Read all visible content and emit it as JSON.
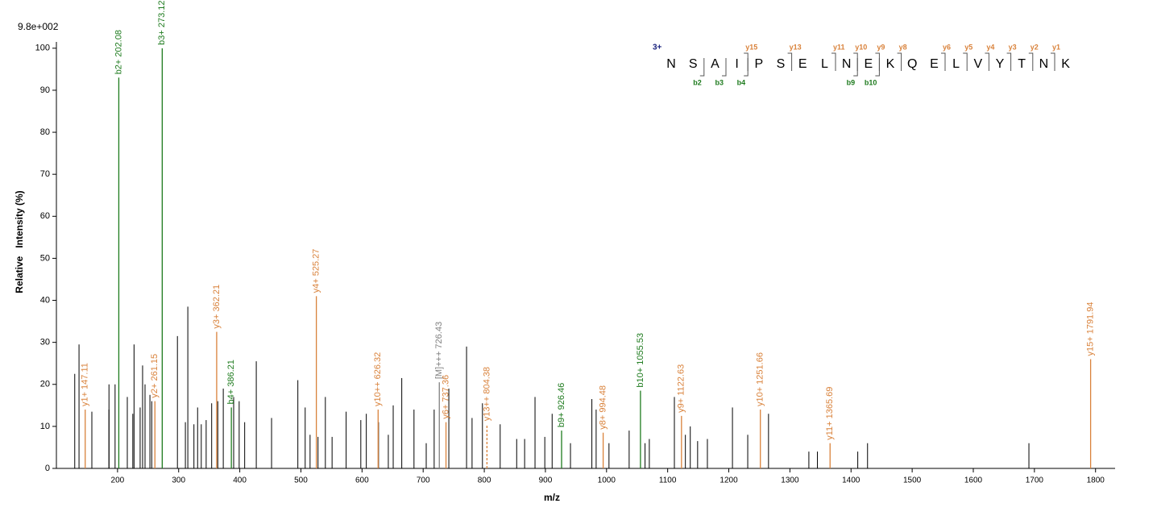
{
  "chart_data": {
    "type": "spectrum",
    "scale_label": "9.8e+002",
    "xlabel": "m/z",
    "ylabel": "Relative   Intensity (%)",
    "xlim": [
      100,
      1832
    ],
    "ylim": [
      0,
      101.5
    ],
    "xticks": [
      200,
      300,
      400,
      500,
      600,
      700,
      800,
      900,
      1000,
      1100,
      1200,
      1300,
      1400,
      1500,
      1600,
      1700,
      1800
    ],
    "yticks": [
      0,
      10,
      20,
      30,
      40,
      50,
      60,
      70,
      80,
      90,
      100
    ],
    "peaks": {
      "color": "#000000",
      "x": [
        130,
        137,
        158,
        186,
        186,
        196,
        216,
        225,
        227,
        237,
        241,
        245,
        253,
        256,
        298,
        311,
        315,
        325,
        331,
        337,
        345,
        354,
        364,
        373,
        390,
        399,
        408,
        427,
        452,
        495,
        507,
        515,
        528,
        540,
        551,
        574,
        598,
        607,
        627,
        643,
        651,
        665,
        685,
        705,
        718,
        742,
        771,
        780,
        797,
        826,
        853,
        866,
        883,
        899,
        911,
        941,
        976,
        983,
        1004,
        1037,
        1063,
        1070,
        1111,
        1129,
        1137,
        1149,
        1165,
        1206,
        1231,
        1265,
        1331,
        1345,
        1411,
        1427,
        1691
      ],
      "values": [
        22.5,
        29.5,
        13.5,
        20,
        14,
        20,
        17,
        13,
        29.5,
        14.5,
        24.5,
        20,
        17.5,
        16,
        31.5,
        11,
        38.5,
        10.5,
        14.5,
        10.5,
        11.5,
        15.5,
        16,
        19,
        17,
        16,
        11,
        25.5,
        12,
        21,
        14.5,
        8,
        7.5,
        17,
        7.5,
        13.5,
        11.5,
        13,
        11,
        8,
        15,
        21.5,
        14,
        6,
        14,
        19,
        29,
        12,
        15.5,
        10.5,
        7,
        7,
        17,
        7.5,
        13,
        6,
        16.5,
        14,
        6,
        9,
        6,
        7,
        17,
        8,
        10,
        6.5,
        7,
        14.5,
        8,
        13,
        4,
        4,
        4,
        6,
        6
      ]
    },
    "annotations": [
      {
        "x": 147.11,
        "value": 14,
        "label": "y1+ 147.11",
        "color": "#d9823b"
      },
      {
        "x": 202.08,
        "value": 93,
        "label": "b2+ 202.08",
        "color": "#1e7b1e"
      },
      {
        "x": 261.15,
        "value": 16,
        "label": "y2+ 261.15",
        "color": "#d9823b"
      },
      {
        "x": 273.12,
        "value": 100,
        "label": "b3+ 273.12",
        "color": "#1e7b1e"
      },
      {
        "x": 362.21,
        "value": 32.5,
        "label": "y3+ 362.21",
        "color": "#d9823b"
      },
      {
        "x": 386.21,
        "value": 14.5,
        "label": "b4+ 386.21",
        "color": "#1e7b1e"
      },
      {
        "x": 525.27,
        "value": 41,
        "label": "y4+ 525.27",
        "color": "#d9823b"
      },
      {
        "x": 626.32,
        "value": 14,
        "label": "y10++ 626.32",
        "color": "#d9823b"
      },
      {
        "x": 726.43,
        "value": 20.5,
        "label": "[M]+++ 726.43",
        "color": "#808080"
      },
      {
        "x": 737.36,
        "value": 11,
        "label": "y6+ 737.36",
        "color": "#d9823b"
      },
      {
        "x": 804.38,
        "value": 10.5,
        "label": "y13++ 804.38",
        "color": "#d9823b",
        "dashed": true
      },
      {
        "x": 926.46,
        "value": 9,
        "label": "b9+ 926.46",
        "color": "#1e7b1e"
      },
      {
        "x": 994.48,
        "value": 8.5,
        "label": "y8+ 994.48",
        "color": "#d9823b"
      },
      {
        "x": 1055.53,
        "value": 18.5,
        "label": "b10+ 1055.53",
        "color": "#1e7b1e"
      },
      {
        "x": 1122.63,
        "value": 12.5,
        "label": "y9+ 1122.63",
        "color": "#d9823b"
      },
      {
        "x": 1251.66,
        "value": 14,
        "label": "y10+ 1251.66",
        "color": "#d9823b"
      },
      {
        "x": 1365.69,
        "value": 6,
        "label": "y11+ 1365.69",
        "color": "#d9823b"
      },
      {
        "x": 1791.94,
        "value": 26,
        "label": "y15+ 1791.94",
        "color": "#d9823b"
      }
    ],
    "sequence": {
      "charge": "3+",
      "residues": [
        "N",
        "S",
        "A",
        "I",
        "P",
        "S",
        "E",
        "L",
        "N",
        "E",
        "K",
        "Q",
        "E",
        "L",
        "V",
        "Y",
        "T",
        "N",
        "K"
      ],
      "y_ions": [
        "y15",
        "y13",
        "y11",
        "y10",
        "y9",
        "y8",
        "y6",
        "y5",
        "y4",
        "y3",
        "y2",
        "y1"
      ],
      "b_ions": [
        "b2",
        "b3",
        "b4",
        "b9",
        "b10"
      ]
    }
  }
}
